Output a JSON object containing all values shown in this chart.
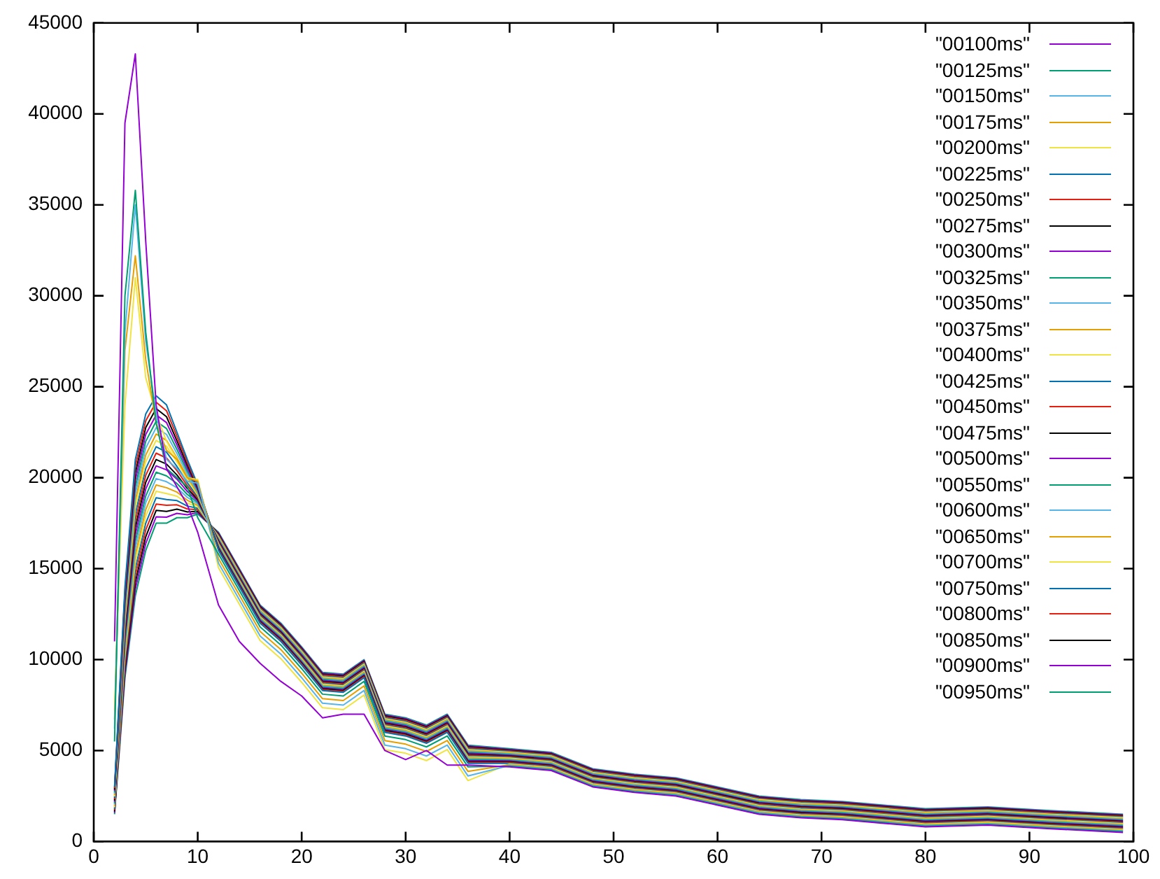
{
  "chart_data": {
    "type": "line",
    "legend": "top right",
    "marker": "none",
    "line_style": "solid",
    "x": [
      2,
      3,
      4,
      5,
      6,
      7,
      8,
      9,
      10,
      12,
      14,
      16,
      18,
      20,
      22,
      24,
      26,
      28,
      30,
      32,
      34,
      36,
      40,
      44,
      48,
      52,
      56,
      60,
      64,
      68,
      72,
      76,
      80,
      86,
      92,
      99
    ],
    "xlim": [
      0,
      100
    ],
    "xticks": [
      0,
      10,
      20,
      30,
      40,
      50,
      60,
      70,
      80,
      90,
      100
    ],
    "ylim": [
      0,
      45000
    ],
    "yticks": [
      0,
      5000,
      10000,
      15000,
      20000,
      25000,
      30000,
      35000,
      40000,
      45000
    ],
    "series": [
      {
        "name": "\"00100ms\"",
        "color": "#9400d3",
        "values": [
          11000,
          39500,
          43300,
          33000,
          24000,
          20500,
          19500,
          18500,
          17000,
          13000,
          11000,
          9800,
          8800,
          8000,
          6800,
          7000,
          7000,
          5000,
          4500,
          5000,
          4200,
          4200,
          4100,
          3900,
          3000,
          2700,
          2500,
          2000,
          1500,
          1300,
          1200,
          1000,
          800,
          900,
          700,
          500
        ]
      },
      {
        "name": "\"00125ms\"",
        "color": "#009e73",
        "values": [
          5500,
          30000,
          35800,
          28000,
          23000,
          20500,
          20000,
          19500,
          17800,
          15800,
          13800,
          11800,
          10800,
          9500,
          8100,
          8000,
          8800,
          5800,
          5600,
          5200,
          5800,
          4100,
          4140,
          3940,
          3040,
          2740,
          2540,
          2040,
          1540,
          1340,
          1240,
          1040,
          840,
          940,
          740,
          540
        ]
      },
      {
        "name": "\"00150ms\"",
        "color": "#56b4e9",
        "values": [
          6200,
          28000,
          35000,
          27500,
          23500,
          21000,
          20500,
          19800,
          19700,
          15300,
          13300,
          11300,
          10300,
          9000,
          7600,
          7500,
          8300,
          5300,
          5100,
          4700,
          5300,
          3600,
          4180,
          3980,
          3080,
          2780,
          2580,
          2080,
          1580,
          1380,
          1280,
          1080,
          880,
          980,
          780,
          580
        ]
      },
      {
        "name": "\"00175ms\"",
        "color": "#e69f00",
        "values": [
          6700,
          27000,
          32200,
          26500,
          23000,
          21500,
          21000,
          20000,
          19800,
          15550,
          13550,
          11550,
          10550,
          9250,
          7850,
          7750,
          8550,
          5550,
          5350,
          4950,
          5550,
          3850,
          4220,
          4020,
          3120,
          2820,
          2620,
          2120,
          1620,
          1420,
          1320,
          1120,
          920,
          1020,
          820,
          620
        ]
      },
      {
        "name": "\"00200ms\"",
        "color": "#f0e442",
        "values": [
          7200,
          24000,
          31000,
          25500,
          23500,
          22000,
          21000,
          20000,
          19900,
          15050,
          13050,
          11050,
          10050,
          8750,
          7350,
          7250,
          8050,
          5050,
          4850,
          4450,
          5050,
          3350,
          4260,
          4060,
          3160,
          2860,
          2660,
          2160,
          1660,
          1460,
          1360,
          1160,
          960,
          1060,
          860,
          660
        ]
      },
      {
        "name": "\"00225ms\"",
        "color": "#0072b2",
        "values": [
          3000,
          14000,
          21000,
          23500,
          24500,
          24000,
          22500,
          21000,
          19600,
          16000,
          14000,
          12000,
          11000,
          9700,
          8300,
          8200,
          9000,
          6000,
          5800,
          5400,
          6000,
          4300,
          4300,
          4100,
          3200,
          2900,
          2700,
          2200,
          1700,
          1500,
          1400,
          1200,
          1000,
          1100,
          900,
          700
        ]
      },
      {
        "name": "\"00250ms\"",
        "color": "#e51e10",
        "values": [
          2930,
          13750,
          20630,
          23130,
          24150,
          23680,
          22270,
          20840,
          19520,
          16050,
          14050,
          12050,
          11050,
          9750,
          8350,
          8250,
          9050,
          6050,
          5850,
          5450,
          6050,
          4350,
          4340,
          4140,
          3240,
          2940,
          2740,
          2240,
          1740,
          1540,
          1440,
          1240,
          1040,
          1140,
          940,
          740
        ]
      },
      {
        "name": "\"00275ms\"",
        "color": "#000000",
        "values": [
          2850,
          13500,
          20250,
          22750,
          23800,
          23350,
          22030,
          20680,
          19440,
          16100,
          14100,
          12100,
          11100,
          9800,
          8400,
          8300,
          9100,
          6100,
          5900,
          5500,
          6100,
          4400,
          4380,
          4180,
          3280,
          2980,
          2780,
          2280,
          1780,
          1580,
          1480,
          1280,
          1080,
          1180,
          980,
          780
        ]
      },
      {
        "name": "\"00300ms\"",
        "color": "#9400d3",
        "values": [
          2780,
          13250,
          19880,
          22380,
          23450,
          23030,
          21800,
          20520,
          19360,
          16150,
          14150,
          12150,
          11150,
          9850,
          8450,
          8350,
          9150,
          6150,
          5950,
          5550,
          6150,
          4450,
          4420,
          4220,
          3320,
          3020,
          2820,
          2320,
          1820,
          1620,
          1520,
          1320,
          1120,
          1220,
          1020,
          820
        ]
      },
      {
        "name": "\"00325ms\"",
        "color": "#009e73",
        "values": [
          2700,
          13000,
          19500,
          22000,
          23100,
          22700,
          21560,
          20360,
          19280,
          16200,
          14200,
          12200,
          11200,
          9900,
          8500,
          8400,
          9200,
          6200,
          6000,
          5600,
          6200,
          4500,
          4460,
          4260,
          3360,
          3060,
          2860,
          2360,
          1860,
          1660,
          1560,
          1360,
          1160,
          1260,
          1060,
          860
        ]
      },
      {
        "name": "\"00350ms\"",
        "color": "#56b4e9",
        "values": [
          2630,
          12750,
          19130,
          21630,
          22750,
          22380,
          21330,
          20200,
          19200,
          16250,
          14250,
          12250,
          11250,
          9950,
          8550,
          8450,
          9250,
          6250,
          6050,
          5650,
          6250,
          4550,
          4500,
          4300,
          3400,
          3100,
          2900,
          2400,
          1900,
          1700,
          1600,
          1400,
          1200,
          1300,
          1100,
          900
        ]
      },
      {
        "name": "\"00375ms\"",
        "color": "#e69f00",
        "values": [
          2550,
          12500,
          18750,
          21250,
          22400,
          22050,
          21090,
          20040,
          19120,
          16300,
          14300,
          12300,
          11300,
          10000,
          8600,
          8500,
          9300,
          6300,
          6100,
          5700,
          6300,
          4600,
          4540,
          4340,
          3440,
          3140,
          2940,
          2440,
          1940,
          1740,
          1640,
          1440,
          1240,
          1340,
          1140,
          940
        ]
      },
      {
        "name": "\"00400ms\"",
        "color": "#f0e442",
        "values": [
          2480,
          12250,
          18380,
          20880,
          22050,
          21730,
          20860,
          19880,
          19040,
          16350,
          14350,
          12350,
          11350,
          10050,
          8650,
          8550,
          9350,
          6350,
          6150,
          5750,
          6350,
          4650,
          4580,
          4380,
          3480,
          3180,
          2980,
          2480,
          1980,
          1780,
          1680,
          1480,
          1280,
          1380,
          1180,
          980
        ]
      },
      {
        "name": "\"00425ms\"",
        "color": "#0072b2",
        "values": [
          2400,
          12000,
          18000,
          20500,
          21700,
          21400,
          20620,
          19720,
          18960,
          16400,
          14400,
          12400,
          11400,
          10100,
          8700,
          8600,
          9400,
          6400,
          6200,
          5800,
          6400,
          4700,
          4620,
          4420,
          3520,
          3220,
          3020,
          2520,
          2020,
          1820,
          1720,
          1520,
          1320,
          1420,
          1220,
          1020
        ]
      },
      {
        "name": "\"00450ms\"",
        "color": "#e51e10",
        "values": [
          2330,
          11750,
          17630,
          20130,
          21350,
          21080,
          20390,
          19560,
          18880,
          16450,
          14450,
          12450,
          11450,
          10150,
          8750,
          8650,
          9450,
          6450,
          6250,
          5850,
          6450,
          4750,
          4660,
          4460,
          3560,
          3260,
          3060,
          2560,
          2060,
          1860,
          1760,
          1560,
          1360,
          1460,
          1260,
          1060
        ]
      },
      {
        "name": "\"00475ms\"",
        "color": "#000000",
        "values": [
          2250,
          11500,
          17250,
          19750,
          21000,
          20750,
          20150,
          19400,
          18800,
          16500,
          14500,
          12500,
          11500,
          10200,
          8800,
          8700,
          9500,
          6500,
          6300,
          5900,
          6500,
          4800,
          4700,
          4500,
          3600,
          3300,
          3100,
          2600,
          2100,
          1900,
          1800,
          1600,
          1400,
          1500,
          1300,
          1100
        ]
      },
      {
        "name": "\"00500ms\"",
        "color": "#9400d3",
        "values": [
          2180,
          11250,
          16880,
          19380,
          20650,
          20430,
          19920,
          19240,
          18720,
          16550,
          14550,
          12550,
          11550,
          10250,
          8850,
          8750,
          9550,
          6550,
          6350,
          5950,
          6550,
          4850,
          4740,
          4540,
          3640,
          3340,
          3140,
          2640,
          2140,
          1940,
          1840,
          1640,
          1440,
          1540,
          1340,
          1140
        ]
      },
      {
        "name": "\"00550ms\"",
        "color": "#009e73",
        "values": [
          2100,
          11000,
          16500,
          19000,
          20300,
          20100,
          19680,
          19080,
          18640,
          16600,
          14600,
          12600,
          11600,
          10300,
          8900,
          8800,
          9600,
          6600,
          6400,
          6000,
          6600,
          4900,
          4780,
          4580,
          3680,
          3380,
          3180,
          2680,
          2180,
          1980,
          1880,
          1680,
          1480,
          1580,
          1380,
          1180
        ]
      },
      {
        "name": "\"00600ms\"",
        "color": "#56b4e9",
        "values": [
          2030,
          10750,
          16130,
          18630,
          19950,
          19780,
          19450,
          18920,
          18560,
          16650,
          14650,
          12650,
          11650,
          10350,
          8950,
          8850,
          9650,
          6650,
          6450,
          6050,
          6650,
          4950,
          4820,
          4620,
          3720,
          3420,
          3220,
          2720,
          2220,
          2020,
          1920,
          1720,
          1520,
          1620,
          1420,
          1220
        ]
      },
      {
        "name": "\"00650ms\"",
        "color": "#e69f00",
        "values": [
          1950,
          10500,
          15750,
          18250,
          19600,
          19450,
          19210,
          18760,
          18480,
          16700,
          14700,
          12700,
          11700,
          10400,
          9000,
          8900,
          9700,
          6700,
          6500,
          6100,
          6700,
          5000,
          4860,
          4660,
          3760,
          3460,
          3260,
          2760,
          2260,
          2060,
          1960,
          1760,
          1560,
          1660,
          1460,
          1260
        ]
      },
      {
        "name": "\"00700ms\"",
        "color": "#f0e442",
        "values": [
          1880,
          10250,
          15380,
          17880,
          19250,
          19130,
          18980,
          18600,
          18400,
          16750,
          14750,
          12750,
          11750,
          10450,
          9050,
          8950,
          9750,
          6750,
          6550,
          6150,
          6750,
          5050,
          4900,
          4700,
          3800,
          3500,
          3300,
          2800,
          2300,
          2100,
          2000,
          1800,
          1600,
          1700,
          1500,
          1300
        ]
      },
      {
        "name": "\"00750ms\"",
        "color": "#0072b2",
        "values": [
          1800,
          10000,
          15000,
          17500,
          18900,
          18800,
          18740,
          18440,
          18320,
          16800,
          14800,
          12800,
          11800,
          10500,
          9100,
          9000,
          9800,
          6800,
          6600,
          6200,
          6800,
          5100,
          4940,
          4740,
          3840,
          3540,
          3340,
          2840,
          2340,
          2140,
          2040,
          1840,
          1640,
          1740,
          1540,
          1340
        ]
      },
      {
        "name": "\"00800ms\"",
        "color": "#e51e10",
        "values": [
          1730,
          9750,
          14630,
          17130,
          18550,
          18480,
          18510,
          18280,
          18240,
          16850,
          14850,
          12850,
          11850,
          10550,
          9150,
          9050,
          9850,
          6850,
          6650,
          6250,
          6850,
          5150,
          4980,
          4780,
          3880,
          3580,
          3380,
          2880,
          2380,
          2180,
          2080,
          1880,
          1680,
          1780,
          1580,
          1380
        ]
      },
      {
        "name": "\"00850ms\"",
        "color": "#000000",
        "values": [
          1650,
          9500,
          14250,
          16750,
          18200,
          18150,
          18270,
          18120,
          18160,
          16900,
          14900,
          12900,
          11900,
          10600,
          9200,
          9100,
          9900,
          6900,
          6700,
          6300,
          6900,
          5200,
          5020,
          4820,
          3920,
          3620,
          3420,
          2920,
          2420,
          2220,
          2120,
          1920,
          1720,
          1820,
          1620,
          1420
        ]
      },
      {
        "name": "\"00900ms\"",
        "color": "#9400d3",
        "values": [
          1580,
          9250,
          13880,
          16380,
          17850,
          17830,
          18040,
          17960,
          18080,
          16950,
          14950,
          12950,
          11950,
          10650,
          9250,
          9150,
          9950,
          6950,
          6750,
          6350,
          6950,
          5250,
          5060,
          4860,
          3960,
          3660,
          3460,
          2960,
          2460,
          2260,
          2160,
          1960,
          1760,
          1860,
          1660,
          1460
        ]
      },
      {
        "name": "\"00950ms\"",
        "color": "#009e73",
        "values": [
          1500,
          9000,
          13500,
          16000,
          17500,
          17500,
          17800,
          17800,
          18000,
          17000,
          15000,
          13000,
          12000,
          10700,
          9300,
          9200,
          10000,
          7000,
          6800,
          6400,
          7000,
          5300,
          5100,
          4900,
          4000,
          3700,
          3500,
          3000,
          2500,
          2300,
          2200,
          2000,
          1800,
          1900,
          1700,
          1500
        ]
      }
    ]
  }
}
